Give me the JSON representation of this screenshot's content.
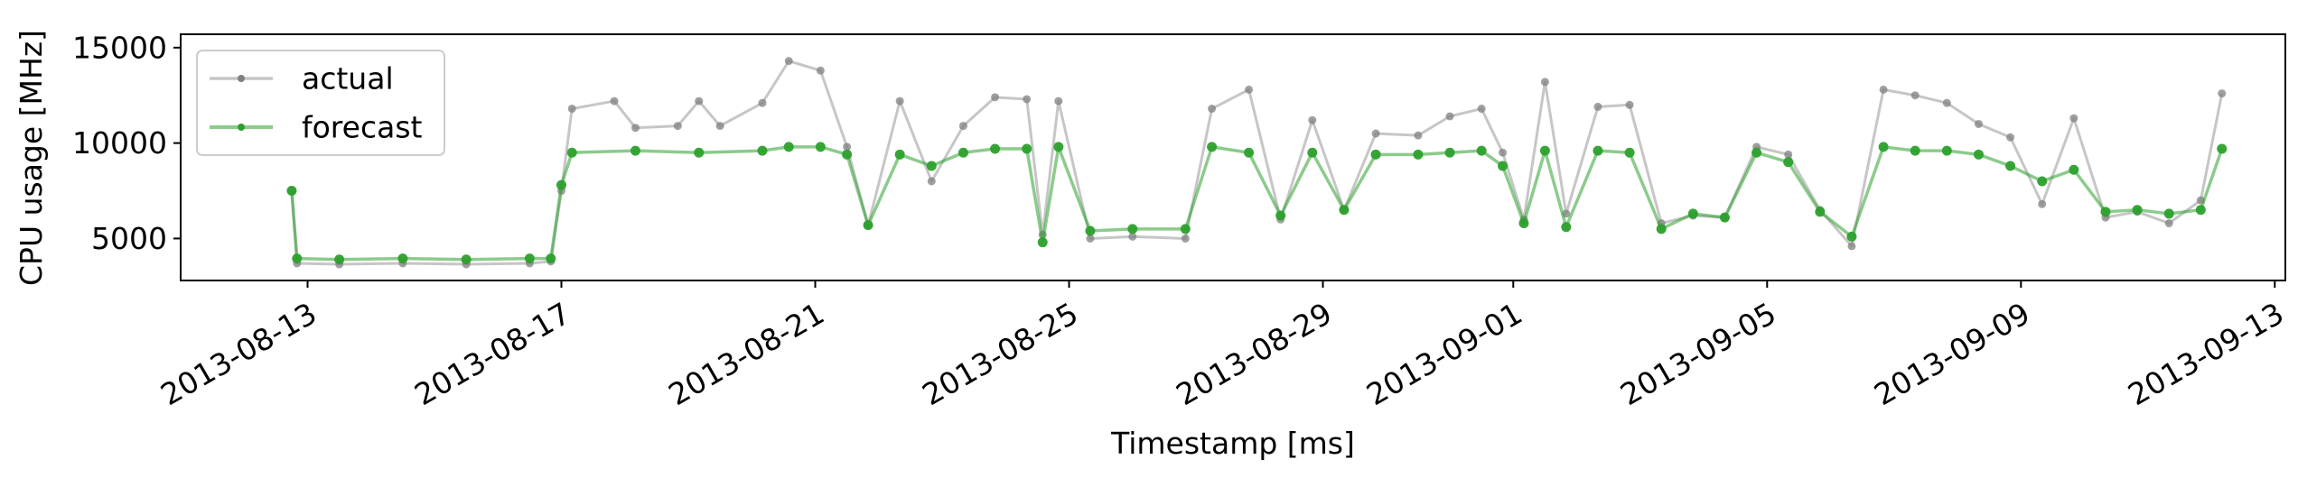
{
  "chart_data": {
    "type": "line",
    "xlabel": "Timestamp [ms]",
    "ylabel": "CPU usage [MHz]",
    "xlim": [
      "2013-08-11T00:00",
      "2013-09-13T04:00"
    ],
    "ylim": [
      2800,
      15700
    ],
    "x_ticks": [
      "2013-08-13",
      "2013-08-17",
      "2013-08-21",
      "2013-08-25",
      "2013-08-29",
      "2013-09-01",
      "2013-09-05",
      "2013-09-09",
      "2013-09-13"
    ],
    "y_ticks": [
      5000,
      10000,
      15000
    ],
    "y_tick_labels": [
      "5000",
      "10000",
      "15000"
    ],
    "grid": false,
    "legend": {
      "position": "top-left"
    },
    "series": [
      {
        "name": "actual",
        "color": "#808080",
        "points": [
          [
            "2013-08-12T18:00",
            7500
          ],
          [
            "2013-08-12T20:00",
            3700
          ],
          [
            "2013-08-13T12:00",
            3650
          ],
          [
            "2013-08-14T12:00",
            3700
          ],
          [
            "2013-08-15T12:00",
            3650
          ],
          [
            "2013-08-16T12:00",
            3700
          ],
          [
            "2013-08-16T20:00",
            3800
          ],
          [
            "2013-08-17T00:00",
            7500
          ],
          [
            "2013-08-17T04:00",
            11800
          ],
          [
            "2013-08-17T20:00",
            12200
          ],
          [
            "2013-08-18T04:00",
            10800
          ],
          [
            "2013-08-18T20:00",
            10900
          ],
          [
            "2013-08-19T04:00",
            12200
          ],
          [
            "2013-08-19T12:00",
            10900
          ],
          [
            "2013-08-20T04:00",
            12100
          ],
          [
            "2013-08-20T14:00",
            14300
          ],
          [
            "2013-08-21T02:00",
            13800
          ],
          [
            "2013-08-21T12:00",
            9800
          ],
          [
            "2013-08-21T20:00",
            5700
          ],
          [
            "2013-08-22T08:00",
            12200
          ],
          [
            "2013-08-22T20:00",
            8000
          ],
          [
            "2013-08-23T08:00",
            10900
          ],
          [
            "2013-08-23T20:00",
            12400
          ],
          [
            "2013-08-24T08:00",
            12300
          ],
          [
            "2013-08-24T14:00",
            5200
          ],
          [
            "2013-08-24T20:00",
            12200
          ],
          [
            "2013-08-25T08:00",
            5000
          ],
          [
            "2013-08-26T00:00",
            5100
          ],
          [
            "2013-08-26T20:00",
            5000
          ],
          [
            "2013-08-27T06:00",
            11800
          ],
          [
            "2013-08-27T20:00",
            12800
          ],
          [
            "2013-08-28T08:00",
            6000
          ],
          [
            "2013-08-28T20:00",
            11200
          ],
          [
            "2013-08-29T08:00",
            6500
          ],
          [
            "2013-08-29T20:00",
            10500
          ],
          [
            "2013-08-30T12:00",
            10400
          ],
          [
            "2013-08-31T00:00",
            11400
          ],
          [
            "2013-08-31T12:00",
            11800
          ],
          [
            "2013-08-31T20:00",
            9500
          ],
          [
            "2013-09-01T04:00",
            6000
          ],
          [
            "2013-09-01T12:00",
            13200
          ],
          [
            "2013-09-01T20:00",
            6300
          ],
          [
            "2013-09-02T08:00",
            11900
          ],
          [
            "2013-09-02T20:00",
            12000
          ],
          [
            "2013-09-03T08:00",
            5800
          ],
          [
            "2013-09-03T20:00",
            6200
          ],
          [
            "2013-09-04T08:00",
            6100
          ],
          [
            "2013-09-04T20:00",
            9800
          ],
          [
            "2013-09-05T08:00",
            9400
          ],
          [
            "2013-09-05T20:00",
            6500
          ],
          [
            "2013-09-06T08:00",
            4600
          ],
          [
            "2013-09-06T20:00",
            12800
          ],
          [
            "2013-09-07T08:00",
            12500
          ],
          [
            "2013-09-07T20:00",
            12100
          ],
          [
            "2013-09-08T08:00",
            11000
          ],
          [
            "2013-09-08T20:00",
            10300
          ],
          [
            "2013-09-09T08:00",
            6800
          ],
          [
            "2013-09-09T20:00",
            11300
          ],
          [
            "2013-09-10T08:00",
            6100
          ],
          [
            "2013-09-10T20:00",
            6400
          ],
          [
            "2013-09-11T08:00",
            5800
          ],
          [
            "2013-09-11T20:00",
            7000
          ],
          [
            "2013-09-12T04:00",
            12600
          ]
        ]
      },
      {
        "name": "forecast",
        "color": "#2ca02c",
        "points": [
          [
            "2013-08-12T18:00",
            7500
          ],
          [
            "2013-08-12T20:00",
            3950
          ],
          [
            "2013-08-13T12:00",
            3900
          ],
          [
            "2013-08-14T12:00",
            3950
          ],
          [
            "2013-08-15T12:00",
            3900
          ],
          [
            "2013-08-16T12:00",
            3950
          ],
          [
            "2013-08-16T20:00",
            3950
          ],
          [
            "2013-08-17T00:00",
            7800
          ],
          [
            "2013-08-17T04:00",
            9500
          ],
          [
            "2013-08-18T04:00",
            9600
          ],
          [
            "2013-08-19T04:00",
            9500
          ],
          [
            "2013-08-20T04:00",
            9600
          ],
          [
            "2013-08-20T14:00",
            9800
          ],
          [
            "2013-08-21T02:00",
            9800
          ],
          [
            "2013-08-21T12:00",
            9400
          ],
          [
            "2013-08-21T20:00",
            5700
          ],
          [
            "2013-08-22T08:00",
            9400
          ],
          [
            "2013-08-22T20:00",
            8800
          ],
          [
            "2013-08-23T08:00",
            9500
          ],
          [
            "2013-08-23T20:00",
            9700
          ],
          [
            "2013-08-24T08:00",
            9700
          ],
          [
            "2013-08-24T14:00",
            4800
          ],
          [
            "2013-08-24T20:00",
            9800
          ],
          [
            "2013-08-25T08:00",
            5400
          ],
          [
            "2013-08-26T00:00",
            5500
          ],
          [
            "2013-08-26T20:00",
            5500
          ],
          [
            "2013-08-27T06:00",
            9800
          ],
          [
            "2013-08-27T20:00",
            9500
          ],
          [
            "2013-08-28T08:00",
            6200
          ],
          [
            "2013-08-28T20:00",
            9500
          ],
          [
            "2013-08-29T08:00",
            6500
          ],
          [
            "2013-08-29T20:00",
            9400
          ],
          [
            "2013-08-30T12:00",
            9400
          ],
          [
            "2013-08-31T00:00",
            9500
          ],
          [
            "2013-08-31T12:00",
            9600
          ],
          [
            "2013-08-31T20:00",
            8800
          ],
          [
            "2013-09-01T04:00",
            5800
          ],
          [
            "2013-09-01T12:00",
            9600
          ],
          [
            "2013-09-01T20:00",
            5600
          ],
          [
            "2013-09-02T08:00",
            9600
          ],
          [
            "2013-09-02T20:00",
            9500
          ],
          [
            "2013-09-03T08:00",
            5500
          ],
          [
            "2013-09-03T20:00",
            6300
          ],
          [
            "2013-09-04T08:00",
            6100
          ],
          [
            "2013-09-04T20:00",
            9500
          ],
          [
            "2013-09-05T08:00",
            9000
          ],
          [
            "2013-09-05T20:00",
            6400
          ],
          [
            "2013-09-06T08:00",
            5100
          ],
          [
            "2013-09-06T20:00",
            9800
          ],
          [
            "2013-09-07T08:00",
            9600
          ],
          [
            "2013-09-07T20:00",
            9600
          ],
          [
            "2013-09-08T08:00",
            9400
          ],
          [
            "2013-09-08T20:00",
            8800
          ],
          [
            "2013-09-09T08:00",
            8000
          ],
          [
            "2013-09-09T20:00",
            8600
          ],
          [
            "2013-09-10T08:00",
            6400
          ],
          [
            "2013-09-10T20:00",
            6500
          ],
          [
            "2013-09-11T08:00",
            6300
          ],
          [
            "2013-09-11T20:00",
            6500
          ],
          [
            "2013-09-12T04:00",
            9700
          ]
        ]
      }
    ]
  }
}
